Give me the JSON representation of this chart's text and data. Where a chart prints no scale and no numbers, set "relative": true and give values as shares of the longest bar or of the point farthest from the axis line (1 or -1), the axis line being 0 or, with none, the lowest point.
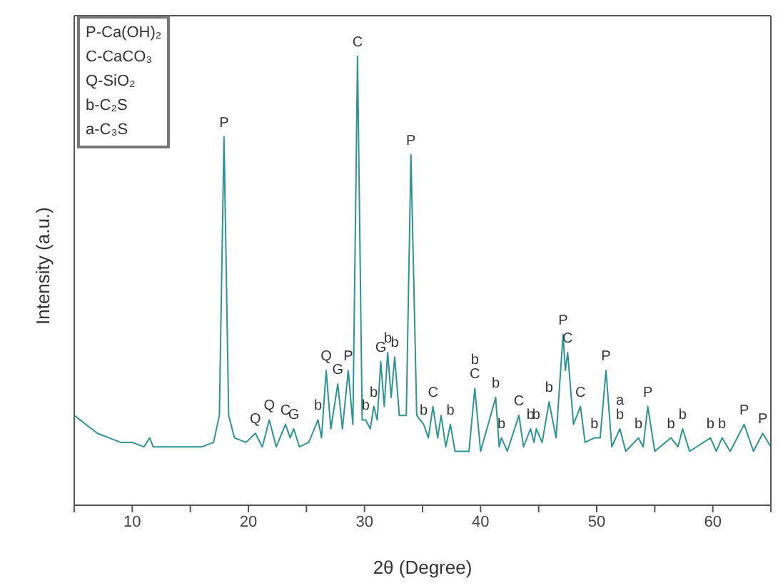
{
  "chart_data": {
    "type": "line",
    "relative": true,
    "xlabel": "2θ (Degree)",
    "ylabel": "Intensity (a.u.)",
    "color": "#2e9393",
    "marker": "none",
    "grid": false,
    "legend": false,
    "xlim": [
      5,
      65
    ],
    "xticks": [
      {
        "value": 5,
        "label": null
      },
      10,
      {
        "value": 15,
        "label": null
      },
      20,
      {
        "value": 25,
        "label": null
      },
      30,
      {
        "value": 35,
        "label": null
      },
      40,
      {
        "value": 45,
        "label": null
      },
      50,
      {
        "value": 55,
        "label": null
      },
      60,
      {
        "value": 65,
        "label": null
      }
    ],
    "x": [
      5,
      6,
      7,
      8,
      9,
      10,
      11,
      11.5,
      11.8,
      14,
      16,
      17,
      17.5,
      17.9,
      18.3,
      18.8,
      19.8,
      20.6,
      21.2,
      21.8,
      22.4,
      23.2,
      23.6,
      23.9,
      24.4,
      25.2,
      26.0,
      26.3,
      26.7,
      27.1,
      27.7,
      28.1,
      28.6,
      29.0,
      29.4,
      29.8,
      30.1,
      30.5,
      30.8,
      31.1,
      31.4,
      31.7,
      32.0,
      32.3,
      32.6,
      33.0,
      33.6,
      34.0,
      34.5,
      35.1,
      35.5,
      35.9,
      36.3,
      36.6,
      37.0,
      37.4,
      37.8,
      39.0,
      39.5,
      40.0,
      41.3,
      41.6,
      41.8,
      42.3,
      43.3,
      43.7,
      44.3,
      44.6,
      44.8,
      45.3,
      45.9,
      46.5,
      47.1,
      47.3,
      47.5,
      48.0,
      48.6,
      49.0,
      49.8,
      50.3,
      50.8,
      51.3,
      52.0,
      52.5,
      53.6,
      54.0,
      54.4,
      55.0,
      56.4,
      57.0,
      57.4,
      58.0,
      59.8,
      60.3,
      60.8,
      61.5,
      62.7,
      63.5,
      64.3,
      65
    ],
    "values": [
      0.2,
      0.18,
      0.16,
      0.15,
      0.14,
      0.14,
      0.13,
      0.15,
      0.13,
      0.13,
      0.13,
      0.14,
      0.2,
      0.82,
      0.2,
      0.15,
      0.14,
      0.16,
      0.13,
      0.19,
      0.13,
      0.18,
      0.15,
      0.17,
      0.13,
      0.14,
      0.19,
      0.15,
      0.3,
      0.17,
      0.27,
      0.17,
      0.3,
      0.18,
      1.0,
      0.19,
      0.19,
      0.17,
      0.22,
      0.19,
      0.32,
      0.22,
      0.34,
      0.24,
      0.33,
      0.2,
      0.2,
      0.78,
      0.2,
      0.18,
      0.15,
      0.22,
      0.15,
      0.2,
      0.13,
      0.18,
      0.12,
      0.12,
      0.26,
      0.12,
      0.24,
      0.13,
      0.15,
      0.12,
      0.2,
      0.13,
      0.17,
      0.14,
      0.17,
      0.14,
      0.23,
      0.15,
      0.38,
      0.3,
      0.34,
      0.18,
      0.22,
      0.14,
      0.15,
      0.15,
      0.3,
      0.13,
      0.17,
      0.12,
      0.15,
      0.13,
      0.22,
      0.12,
      0.15,
      0.13,
      0.17,
      0.12,
      0.15,
      0.12,
      0.15,
      0.12,
      0.18,
      0.12,
      0.16,
      0.13
    ],
    "annotations": [
      "P-Ca(OH)₂",
      "C-CaCO₃",
      "Q-SiO₂",
      "b-C₂S",
      "a-C₃S",
      {
        "text": "P",
        "x": 17.9,
        "y": 0.82
      },
      {
        "text": "C",
        "x": 29.4,
        "y": 1.0
      },
      {
        "text": "Q",
        "x": 20.6,
        "y": 0.16
      },
      {
        "text": "Q",
        "x": 21.8,
        "y": 0.19
      },
      {
        "text": "C",
        "x": 23.2,
        "y": 0.18
      },
      {
        "text": "G",
        "x": 23.9,
        "y": 0.17
      },
      {
        "text": "b",
        "x": 26.0,
        "y": 0.19
      },
      {
        "text": "Q",
        "x": 26.7,
        "y": 0.3
      },
      {
        "text": "G",
        "x": 27.7,
        "y": 0.27
      },
      {
        "text": "P",
        "x": 28.6,
        "y": 0.3
      },
      {
        "text": "b",
        "x": 30.1,
        "y": 0.19
      },
      {
        "text": "b",
        "x": 30.8,
        "y": 0.22
      },
      {
        "text": "G",
        "x": 31.4,
        "y": 0.32
      },
      {
        "text": "b",
        "x": 32.0,
        "y": 0.34
      },
      {
        "text": "b",
        "x": 32.6,
        "y": 0.33
      },
      {
        "text": "P",
        "x": 34.0,
        "y": 0.78
      },
      {
        "text": "b",
        "x": 35.1,
        "y": 0.18
      },
      {
        "text": "C",
        "x": 35.9,
        "y": 0.22
      },
      {
        "text": "b",
        "x": 37.4,
        "y": 0.18
      },
      {
        "text": "C",
        "x": 39.5,
        "y": 0.26
      },
      {
        "text": "b",
        "x": 39.5,
        "y": 0.26
      },
      {
        "text": "b",
        "x": 41.3,
        "y": 0.24
      },
      {
        "text": "b",
        "x": 41.8,
        "y": 0.15
      },
      {
        "text": "C",
        "x": 43.3,
        "y": 0.2
      },
      {
        "text": "b",
        "x": 44.3,
        "y": 0.17
      },
      {
        "text": "b",
        "x": 44.8,
        "y": 0.17
      },
      {
        "text": "b",
        "x": 45.9,
        "y": 0.23
      },
      {
        "text": "P",
        "x": 47.1,
        "y": 0.38
      },
      {
        "text": "C",
        "x": 47.5,
        "y": 0.34
      },
      {
        "text": "C",
        "x": 48.6,
        "y": 0.22
      },
      {
        "text": "b",
        "x": 49.8,
        "y": 0.15
      },
      {
        "text": "P",
        "x": 50.8,
        "y": 0.3
      },
      {
        "text": "b",
        "x": 52.0,
        "y": 0.17
      },
      {
        "text": "a",
        "x": 52.0,
        "y": 0.17
      },
      {
        "text": "b",
        "x": 53.6,
        "y": 0.15
      },
      {
        "text": "P",
        "x": 54.4,
        "y": 0.22
      },
      {
        "text": "b",
        "x": 56.4,
        "y": 0.15
      },
      {
        "text": "b",
        "x": 57.4,
        "y": 0.17
      },
      {
        "text": "b",
        "x": 59.8,
        "y": 0.15
      },
      {
        "text": "b",
        "x": 60.8,
        "y": 0.15
      },
      {
        "text": "P",
        "x": 62.7,
        "y": 0.18
      },
      {
        "text": "P",
        "x": 64.3,
        "y": 0.16
      }
    ]
  }
}
